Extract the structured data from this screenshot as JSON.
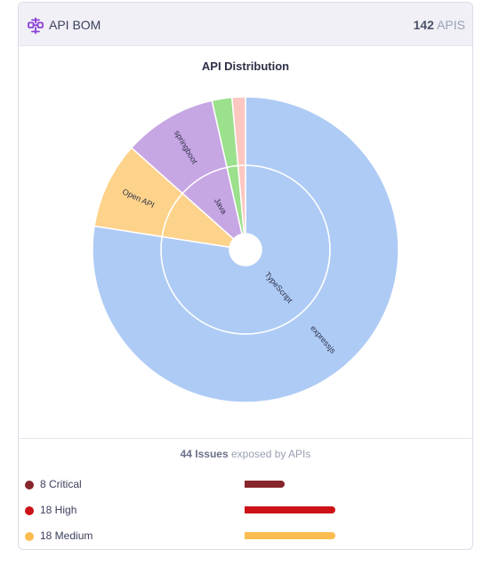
{
  "header": {
    "title": "API BOM",
    "api_count": "142",
    "api_count_suffix": "APIS",
    "icon": "api-network-icon",
    "accent_color": "#8b3fd6"
  },
  "chart_data": {
    "type": "sunburst",
    "title": "API Distribution",
    "inner_ring": [
      {
        "label": "TypeScript",
        "value": 110,
        "color": "#aecbf5"
      },
      {
        "label": "",
        "value": 13,
        "color": "#fdd28a"
      },
      {
        "label": "Java",
        "value": 14,
        "color": "#c7a6e4"
      },
      {
        "label": "",
        "value": 3,
        "color": "#9be08c"
      },
      {
        "label": "",
        "value": 2,
        "color": "#fcc7c0"
      }
    ],
    "outer_ring": [
      {
        "label": "expressjs",
        "value": 110,
        "color": "#aecbf5"
      },
      {
        "label": "Open API",
        "value": 13,
        "color": "#fdd28a"
      },
      {
        "label": "springboot",
        "value": 14,
        "color": "#c7a6e4"
      },
      {
        "label": "",
        "value": 3,
        "color": "#9be08c"
      },
      {
        "label": "",
        "value": 2,
        "color": "#fcc7c0"
      }
    ]
  },
  "issues": {
    "count": "44",
    "count_suffix": "Issues",
    "summary_text": "exposed by APIs",
    "max": 18,
    "rows": [
      {
        "label": "8 Critical",
        "value": 8,
        "color": "#87262c"
      },
      {
        "label": "18 High",
        "value": 18,
        "color": "#cc1217"
      },
      {
        "label": "18 Medium",
        "value": 18,
        "color": "#fcbc50"
      }
    ]
  }
}
